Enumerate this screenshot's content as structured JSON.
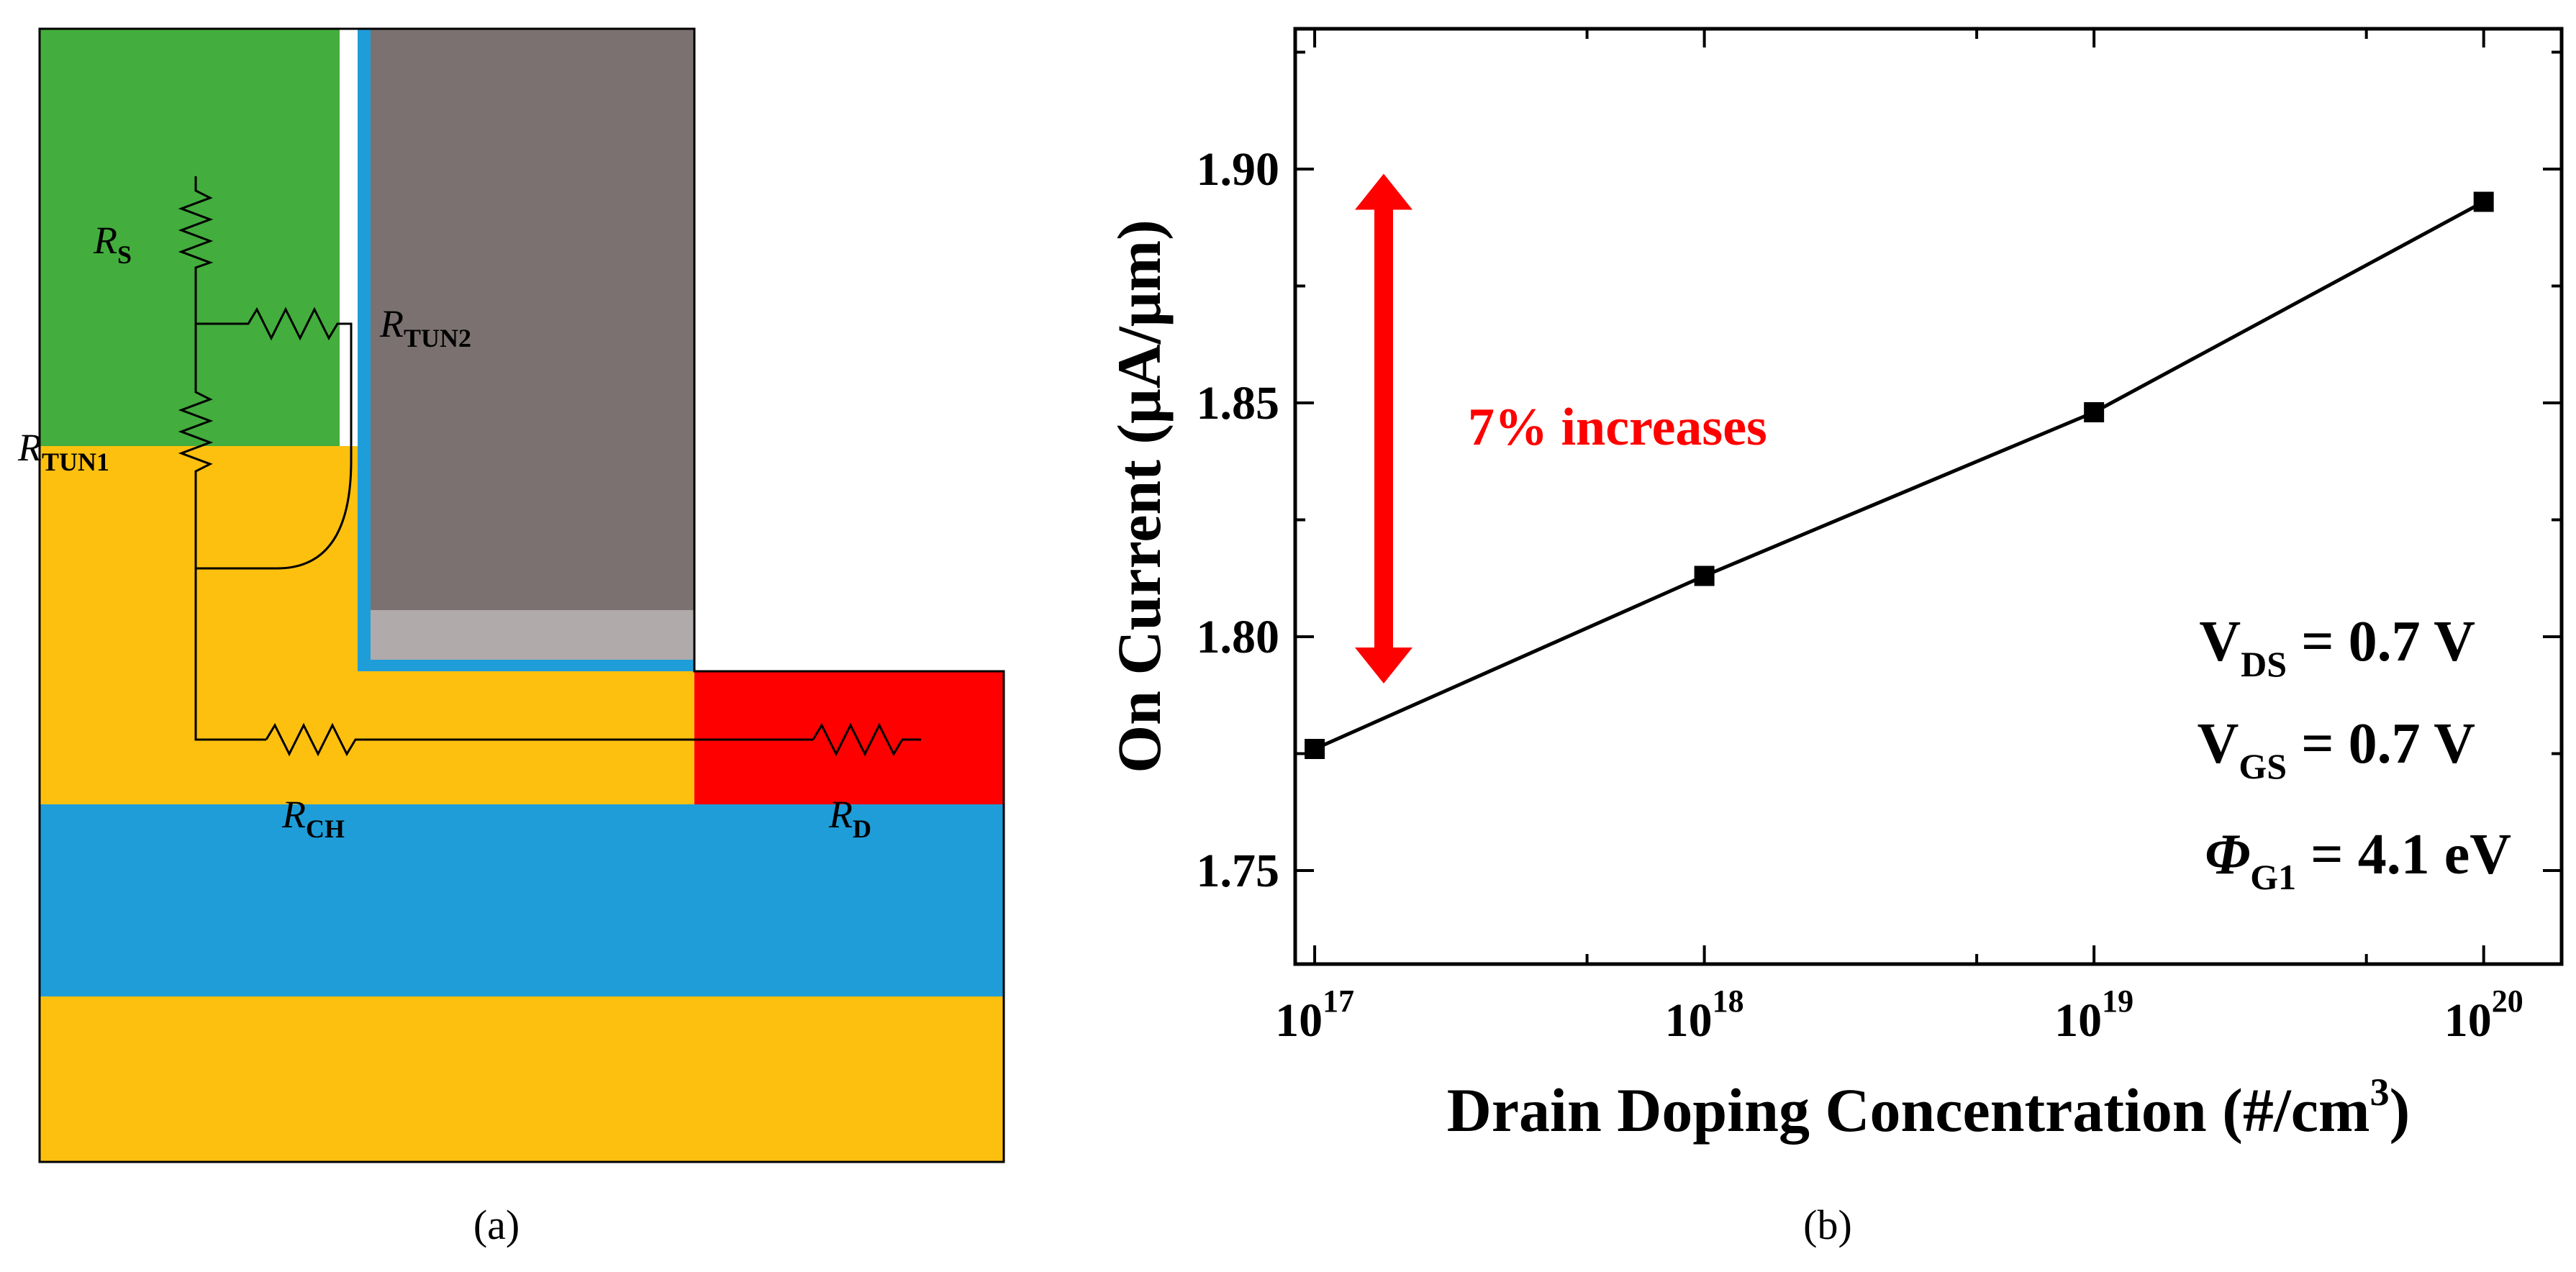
{
  "panel_a": {
    "caption": "(a)",
    "labels": {
      "rs": {
        "main": "R",
        "sub": "S"
      },
      "rtun2": {
        "main": "R",
        "sub": "TUN2"
      },
      "rtun1": {
        "main": "R",
        "sub": "TUN1"
      },
      "rch": {
        "main": "R",
        "sub": "CH"
      },
      "rd": {
        "main": "R",
        "sub": "D"
      }
    },
    "colors": {
      "source": "#43ad3d",
      "channel": "#fec00f",
      "oxide": "#1f9dd9",
      "gate": "#7a7170",
      "gate_light": "#b0aaaa",
      "drain": "#fe0000",
      "circuit": "#000000"
    }
  },
  "panel_b": {
    "caption": "(b)",
    "annotation": "7% increases",
    "annotation_color": "#fe0000",
    "conditions": [
      {
        "main": "V",
        "sub": "DS",
        "rest": " = 0.7 V"
      },
      {
        "main": "V",
        "sub": "GS",
        "rest": " = 0.7 V"
      },
      {
        "main": "Φ",
        "sub": "G1",
        "rest": " = 4.1 eV"
      }
    ]
  },
  "chart_data": {
    "type": "line",
    "title": "",
    "xlabel_main": "Drain Doping Concentration (#/cm",
    "xlabel_sup": "3",
    "xlabel_end": ")",
    "ylabel": "On Current (μA/μm)",
    "xscale": "log",
    "xlim_exp": [
      16.95,
      20.2
    ],
    "ylim": [
      1.73,
      1.93
    ],
    "x_ticks": [
      {
        "base": "10",
        "exp": "17"
      },
      {
        "base": "10",
        "exp": "18"
      },
      {
        "base": "10",
        "exp": "19"
      },
      {
        "base": "10",
        "exp": "20"
      }
    ],
    "y_ticks": [
      "1.75",
      "1.80",
      "1.85",
      "1.90"
    ],
    "series": [
      {
        "name": "On Current",
        "marker": "square",
        "color": "#000000",
        "x_exp": [
          17,
          18,
          19,
          20
        ],
        "values": [
          1.776,
          1.813,
          1.848,
          1.893
        ]
      }
    ],
    "arrow_range": [
      1.79,
      1.899
    ]
  }
}
